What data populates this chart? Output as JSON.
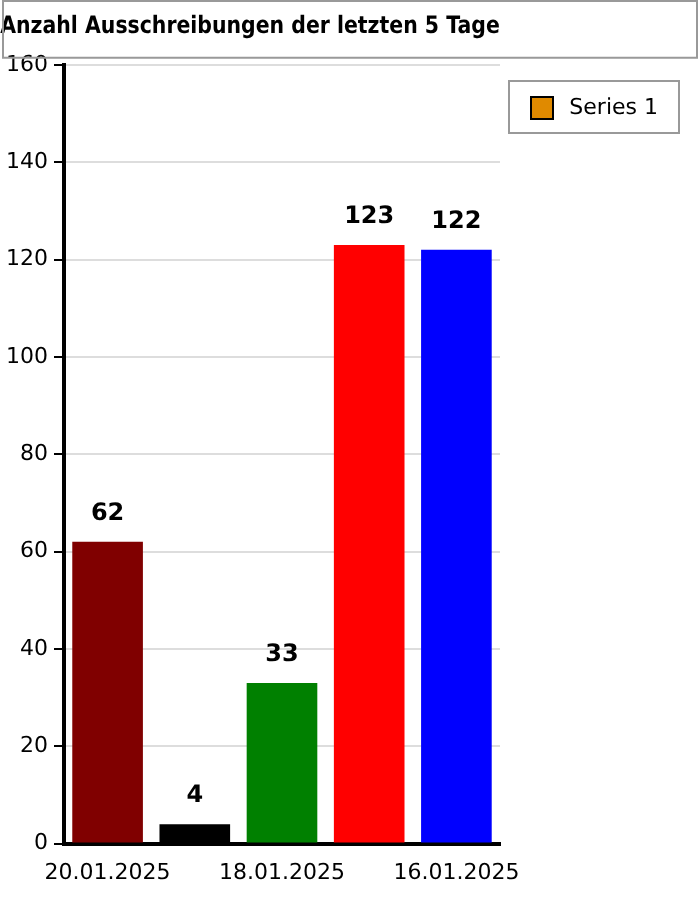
{
  "chart_data": {
    "type": "bar",
    "title": "Anzahl Ausschreibungen der letzten 5 Tage",
    "categories": [
      "20.01.2025",
      null,
      "18.01.2025",
      null,
      "16.01.2025"
    ],
    "series": [
      {
        "name": "Series 1",
        "color": "#e08a00",
        "colors": [
          "#800000",
          "#000000",
          "#008000",
          "#ff0000",
          "#0000ff"
        ],
        "values": [
          62,
          4,
          33,
          123,
          122
        ]
      }
    ],
    "ylim": [
      0,
      160
    ],
    "yticks": [
      0,
      20,
      40,
      60,
      80,
      100,
      120,
      140,
      160
    ],
    "grid": "y",
    "legend": "top right",
    "data_labels": true
  }
}
